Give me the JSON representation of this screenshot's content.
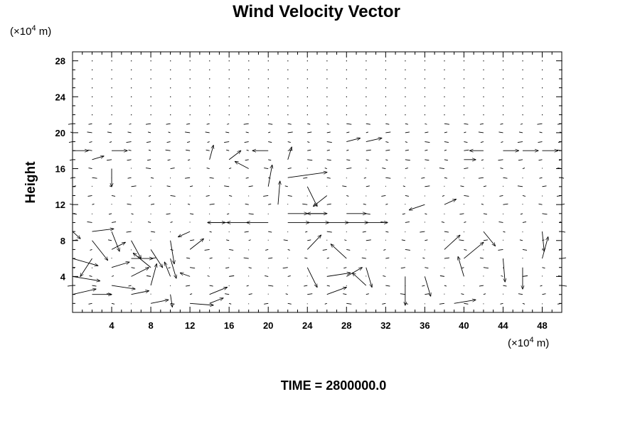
{
  "chart_data": {
    "type": "vector_field",
    "title": "Wind Velocity Vector",
    "ylabel": "Height",
    "y_unit_prefix": "(×10",
    "y_unit_exp": "4",
    "y_unit_suffix": " m)",
    "x_unit_prefix": "(×10",
    "x_unit_exp": "4",
    "x_unit_suffix": " m)",
    "footer": "TIME = 2800000.0",
    "xlim": [
      0,
      50
    ],
    "ylim": [
      0,
      29
    ],
    "x_ticks": [
      "4",
      "8",
      "12",
      "16",
      "20",
      "24",
      "28",
      "32",
      "36",
      "40",
      "44",
      "48"
    ],
    "y_ticks": [
      "4",
      "8",
      "12",
      "16",
      "20",
      "24",
      "28"
    ],
    "grid": false,
    "vectors": [
      {
        "x": 0,
        "y": 9,
        "u": 0.8,
        "v": -0.8
      },
      {
        "x": 0,
        "y": 6,
        "u": 2.6,
        "v": -0.8
      },
      {
        "x": 0,
        "y": 4,
        "u": 2.8,
        "v": -0.5
      },
      {
        "x": 0,
        "y": 2,
        "u": 2.4,
        "v": 0.6
      },
      {
        "x": 2,
        "y": 9,
        "u": 2.2,
        "v": 0.3
      },
      {
        "x": 2,
        "y": 8,
        "u": 1.6,
        "v": -2.2
      },
      {
        "x": 2,
        "y": 6,
        "u": -1.2,
        "v": -2.0
      },
      {
        "x": 2,
        "y": 2,
        "u": 2.0,
        "v": 0.0
      },
      {
        "x": 4,
        "y": 9,
        "u": 0.8,
        "v": -2.2
      },
      {
        "x": 4,
        "y": 7,
        "u": 1.4,
        "v": 0.8
      },
      {
        "x": 4,
        "y": 5,
        "u": 1.8,
        "v": 0.6
      },
      {
        "x": 4,
        "y": 3,
        "u": 2.4,
        "v": -0.4
      },
      {
        "x": 6,
        "y": 8,
        "u": 1.0,
        "v": -2.0
      },
      {
        "x": 6,
        "y": 6,
        "u": 2.2,
        "v": 0.0
      },
      {
        "x": 6,
        "y": 4,
        "u": 1.8,
        "v": 1.0
      },
      {
        "x": 6,
        "y": 2,
        "u": 1.8,
        "v": 0.4
      },
      {
        "x": 8,
        "y": 7,
        "u": 1.2,
        "v": -2.0
      },
      {
        "x": 8,
        "y": 5,
        "u": -1.8,
        "v": 1.6
      },
      {
        "x": 8,
        "y": 3,
        "u": 0.6,
        "v": 2.4
      },
      {
        "x": 8,
        "y": 1,
        "u": 1.8,
        "v": 0.4
      },
      {
        "x": 10,
        "y": 8,
        "u": 0.4,
        "v": -2.6
      },
      {
        "x": 10,
        "y": 6,
        "u": 0.6,
        "v": -2.2
      },
      {
        "x": 10,
        "y": 4,
        "u": -0.6,
        "v": 1.6
      },
      {
        "x": 10,
        "y": 2,
        "u": 0.2,
        "v": -1.4
      },
      {
        "x": 12,
        "y": 9,
        "u": -1.2,
        "v": -0.6
      },
      {
        "x": 12,
        "y": 7,
        "u": 1.4,
        "v": 1.2
      },
      {
        "x": 12,
        "y": 4,
        "u": -1.0,
        "v": 0.4
      },
      {
        "x": 12,
        "y": 1,
        "u": 2.4,
        "v": -0.2
      },
      {
        "x": 14,
        "y": 10,
        "u": 1.6,
        "v": 0.0
      },
      {
        "x": 14,
        "y": 2,
        "u": 1.8,
        "v": 0.8
      },
      {
        "x": 14,
        "y": 1,
        "u": 1.4,
        "v": 0.6
      },
      {
        "x": 16,
        "y": 10,
        "u": -2.2,
        "v": 0.0
      },
      {
        "x": 18,
        "y": 10,
        "u": -2.2,
        "v": 0.0
      },
      {
        "x": 20,
        "y": 10,
        "u": -2.2,
        "v": 0.0
      },
      {
        "x": 22,
        "y": 10,
        "u": 2.2,
        "v": 0.0
      },
      {
        "x": 24,
        "y": 10,
        "u": 2.2,
        "v": 0.0
      },
      {
        "x": 26,
        "y": 10,
        "u": 2.2,
        "v": 0.0
      },
      {
        "x": 28,
        "y": 10,
        "u": 2.2,
        "v": 0.0
      },
      {
        "x": 30,
        "y": 10,
        "u": 2.2,
        "v": 0.0
      },
      {
        "x": 20,
        "y": 14,
        "u": 0.4,
        "v": 2.4
      },
      {
        "x": 21,
        "y": 12,
        "u": 0.2,
        "v": 2.6
      },
      {
        "x": 22,
        "y": 15,
        "u": 4.0,
        "v": 0.6
      },
      {
        "x": 24,
        "y": 14,
        "u": 1.0,
        "v": -2.2
      },
      {
        "x": 26,
        "y": 13,
        "u": -1.4,
        "v": -1.2
      },
      {
        "x": 22,
        "y": 11,
        "u": 2.0,
        "v": 0.0
      },
      {
        "x": 24,
        "y": 11,
        "u": 2.0,
        "v": 0.0
      },
      {
        "x": 26,
        "y": 11,
        "u": -2.0,
        "v": 0.0
      },
      {
        "x": 28,
        "y": 11,
        "u": 2.0,
        "v": 0.0
      },
      {
        "x": 24,
        "y": 7,
        "u": 1.4,
        "v": 1.6
      },
      {
        "x": 24,
        "y": 5,
        "u": 1.0,
        "v": -2.2
      },
      {
        "x": 26,
        "y": 4,
        "u": 2.4,
        "v": 0.4
      },
      {
        "x": 26,
        "y": 2,
        "u": 2.0,
        "v": 0.8
      },
      {
        "x": 28,
        "y": 6,
        "u": -1.6,
        "v": 1.6
      },
      {
        "x": 28,
        "y": 4,
        "u": 1.6,
        "v": 1.0
      },
      {
        "x": 30,
        "y": 5,
        "u": 0.6,
        "v": -2.2
      },
      {
        "x": 30,
        "y": 3,
        "u": -1.4,
        "v": 1.4
      },
      {
        "x": 34,
        "y": 4,
        "u": 0.0,
        "v": -3.2
      },
      {
        "x": 36,
        "y": 4,
        "u": 0.6,
        "v": -2.2
      },
      {
        "x": 38,
        "y": 7,
        "u": 1.6,
        "v": 1.6
      },
      {
        "x": 39,
        "y": 1,
        "u": 2.2,
        "v": 0.4
      },
      {
        "x": 40,
        "y": 4,
        "u": -0.6,
        "v": 2.2
      },
      {
        "x": 40,
        "y": 6,
        "u": 2.0,
        "v": 1.8
      },
      {
        "x": 42,
        "y": 9,
        "u": 1.2,
        "v": -1.6
      },
      {
        "x": 44,
        "y": 6,
        "u": 0.2,
        "v": -2.6
      },
      {
        "x": 46,
        "y": 5,
        "u": 0.0,
        "v": -2.4
      },
      {
        "x": 48,
        "y": 6,
        "u": 0.6,
        "v": 2.4
      },
      {
        "x": 48,
        "y": 9,
        "u": 0.2,
        "v": -2.2
      },
      {
        "x": 0,
        "y": 18,
        "u": 1.6,
        "v": 0.0
      },
      {
        "x": 4,
        "y": 18,
        "u": 1.6,
        "v": 0.0
      },
      {
        "x": 2,
        "y": 17,
        "u": 1.2,
        "v": 0.4
      },
      {
        "x": 4,
        "y": 16,
        "u": 0.0,
        "v": -2.0
      },
      {
        "x": 14,
        "y": 17,
        "u": 0.4,
        "v": 1.6
      },
      {
        "x": 16,
        "y": 17,
        "u": 1.2,
        "v": 1.0
      },
      {
        "x": 18,
        "y": 16,
        "u": -1.4,
        "v": 0.8
      },
      {
        "x": 20,
        "y": 18,
        "u": -1.6,
        "v": 0.0
      },
      {
        "x": 22,
        "y": 17,
        "u": 0.4,
        "v": 1.4
      },
      {
        "x": 28,
        "y": 19,
        "u": 1.4,
        "v": 0.4
      },
      {
        "x": 30,
        "y": 19,
        "u": 1.6,
        "v": 0.4
      },
      {
        "x": 44,
        "y": 18,
        "u": 1.6,
        "v": 0.0
      },
      {
        "x": 46,
        "y": 18,
        "u": 1.6,
        "v": 0.0
      },
      {
        "x": 48,
        "y": 18,
        "u": 1.6,
        "v": 0.0
      },
      {
        "x": 42,
        "y": 18,
        "u": -1.4,
        "v": 0.0
      },
      {
        "x": 40,
        "y": 17,
        "u": 1.2,
        "v": 0.0
      },
      {
        "x": 36,
        "y": 12,
        "u": -1.6,
        "v": -0.6
      },
      {
        "x": 38,
        "y": 12,
        "u": 1.2,
        "v": 0.6
      }
    ]
  }
}
